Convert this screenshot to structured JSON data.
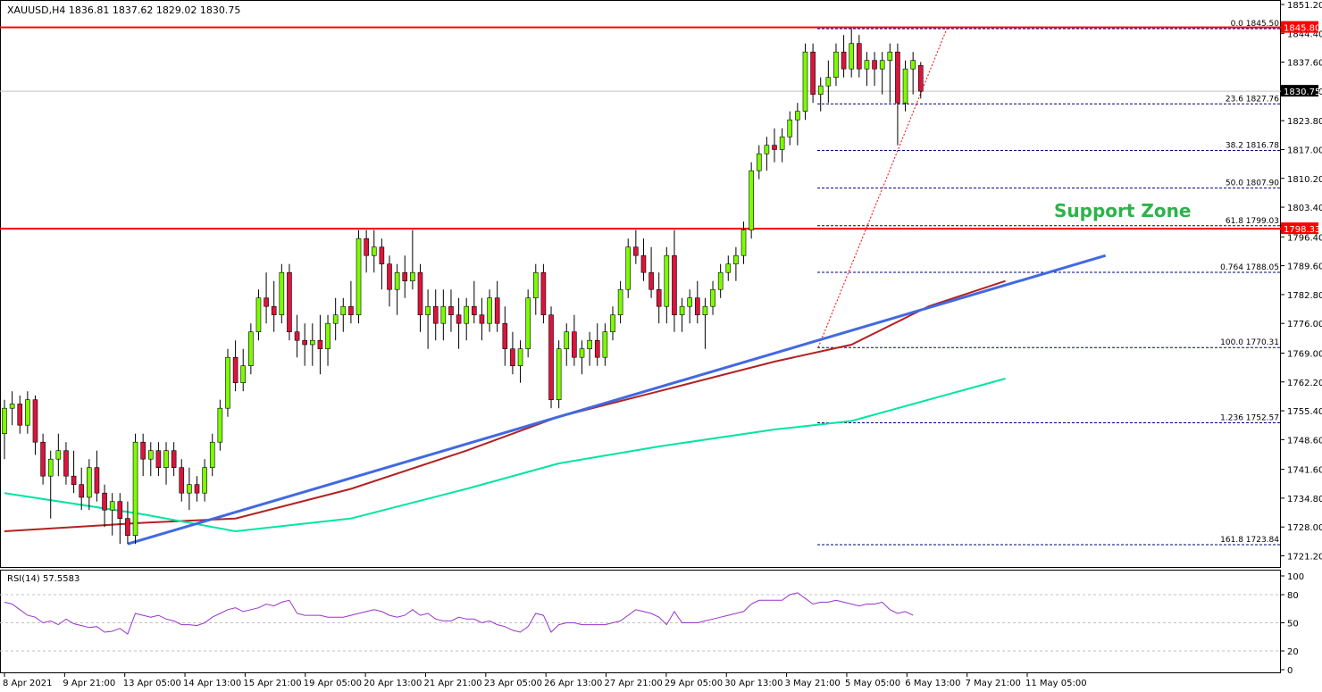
{
  "chart_data": {
    "type": "candlestick",
    "symbol_header": "XAUUSD,H4  1836.81 1837.62 1829.02 1830.75",
    "price_axis_ticks": [
      "1851.20",
      "1844.40",
      "1837.60",
      "1830.80",
      "1823.80",
      "1817.00",
      "1810.20",
      "1803.40",
      "1796.40",
      "1789.60",
      "1782.80",
      "1776.00",
      "1769.00",
      "1762.20",
      "1755.40",
      "1748.60",
      "1741.60",
      "1734.80",
      "1728.00",
      "1721.20"
    ],
    "ylim": [
      1719.2,
      1851.2
    ],
    "time_labels": [
      "8 Apr 2021",
      "9 Apr 21:00",
      "13 Apr 05:00",
      "14 Apr 13:00",
      "15 Apr 21:00",
      "19 Apr 05:00",
      "20 Apr 13:00",
      "21 Apr 21:00",
      "23 Apr 05:00",
      "26 Apr 13:00",
      "27 Apr 21:00",
      "29 Apr 05:00",
      "30 Apr 13:00",
      "3 May 21:00",
      "5 May 05:00",
      "6 May 13:00",
      "7 May 21:00",
      "11 May 05:00"
    ],
    "candles": [
      [
        1750,
        1758,
        1744,
        1756
      ],
      [
        1756,
        1760,
        1752,
        1757
      ],
      [
        1757,
        1759,
        1750,
        1752
      ],
      [
        1752,
        1760,
        1750,
        1758
      ],
      [
        1758,
        1759,
        1745,
        1748
      ],
      [
        1748,
        1750,
        1738,
        1740
      ],
      [
        1740,
        1746,
        1730,
        1744
      ],
      [
        1744,
        1750,
        1740,
        1746
      ],
      [
        1746,
        1748,
        1738,
        1740
      ],
      [
        1740,
        1746,
        1736,
        1738
      ],
      [
        1738,
        1742,
        1732,
        1735
      ],
      [
        1735,
        1744,
        1732,
        1742
      ],
      [
        1742,
        1746,
        1734,
        1736
      ],
      [
        1736,
        1738,
        1728,
        1732
      ],
      [
        1732,
        1736,
        1726,
        1734
      ],
      [
        1734,
        1736,
        1724,
        1730
      ],
      [
        1730,
        1734,
        1724,
        1726
      ],
      [
        1726,
        1750,
        1724,
        1748
      ],
      [
        1748,
        1750,
        1740,
        1744
      ],
      [
        1744,
        1748,
        1740,
        1746
      ],
      [
        1746,
        1748,
        1740,
        1742
      ],
      [
        1742,
        1748,
        1738,
        1746
      ],
      [
        1746,
        1748,
        1740,
        1742
      ],
      [
        1742,
        1744,
        1734,
        1736
      ],
      [
        1736,
        1742,
        1732,
        1738
      ],
      [
        1738,
        1740,
        1734,
        1736
      ],
      [
        1736,
        1744,
        1734,
        1742
      ],
      [
        1742,
        1750,
        1740,
        1748
      ],
      [
        1748,
        1758,
        1746,
        1756
      ],
      [
        1756,
        1770,
        1754,
        1768
      ],
      [
        1768,
        1772,
        1760,
        1762
      ],
      [
        1762,
        1770,
        1760,
        1766
      ],
      [
        1766,
        1776,
        1764,
        1774
      ],
      [
        1774,
        1784,
        1772,
        1782
      ],
      [
        1782,
        1788,
        1776,
        1780
      ],
      [
        1780,
        1786,
        1774,
        1778
      ],
      [
        1778,
        1790,
        1776,
        1788
      ],
      [
        1788,
        1790,
        1772,
        1774
      ],
      [
        1774,
        1778,
        1768,
        1772
      ],
      [
        1772,
        1776,
        1766,
        1771
      ],
      [
        1771,
        1776,
        1766,
        1772
      ],
      [
        1772,
        1778,
        1764,
        1770
      ],
      [
        1770,
        1778,
        1766,
        1776
      ],
      [
        1776,
        1782,
        1772,
        1778
      ],
      [
        1778,
        1782,
        1774,
        1780
      ],
      [
        1780,
        1786,
        1776,
        1778
      ],
      [
        1778,
        1798,
        1776,
        1796
      ],
      [
        1796,
        1798,
        1788,
        1792
      ],
      [
        1792,
        1798,
        1788,
        1794
      ],
      [
        1794,
        1796,
        1784,
        1790
      ],
      [
        1790,
        1792,
        1780,
        1784
      ],
      [
        1784,
        1790,
        1778,
        1788
      ],
      [
        1788,
        1792,
        1782,
        1786
      ],
      [
        1786,
        1798,
        1784,
        1788
      ],
      [
        1788,
        1790,
        1774,
        1778
      ],
      [
        1778,
        1784,
        1770,
        1780
      ],
      [
        1780,
        1784,
        1772,
        1776
      ],
      [
        1776,
        1784,
        1772,
        1780
      ],
      [
        1780,
        1784,
        1774,
        1778
      ],
      [
        1778,
        1782,
        1770,
        1776
      ],
      [
        1776,
        1782,
        1772,
        1780
      ],
      [
        1780,
        1786,
        1776,
        1778
      ],
      [
        1778,
        1782,
        1772,
        1776
      ],
      [
        1776,
        1784,
        1774,
        1782
      ],
      [
        1782,
        1786,
        1774,
        1776
      ],
      [
        1776,
        1780,
        1766,
        1770
      ],
      [
        1770,
        1774,
        1764,
        1766
      ],
      [
        1766,
        1772,
        1762,
        1770
      ],
      [
        1770,
        1784,
        1768,
        1782
      ],
      [
        1782,
        1790,
        1778,
        1788
      ],
      [
        1788,
        1790,
        1776,
        1778
      ],
      [
        1778,
        1780,
        1756,
        1758
      ],
      [
        1758,
        1772,
        1756,
        1770
      ],
      [
        1770,
        1776,
        1766,
        1774
      ],
      [
        1774,
        1778,
        1766,
        1768
      ],
      [
        1768,
        1772,
        1764,
        1770
      ],
      [
        1770,
        1774,
        1766,
        1772
      ],
      [
        1772,
        1776,
        1766,
        1768
      ],
      [
        1768,
        1776,
        1766,
        1774
      ],
      [
        1774,
        1780,
        1772,
        1778
      ],
      [
        1778,
        1786,
        1776,
        1784
      ],
      [
        1784,
        1796,
        1782,
        1794
      ],
      [
        1794,
        1798,
        1790,
        1792
      ],
      [
        1792,
        1796,
        1786,
        1788
      ],
      [
        1788,
        1794,
        1782,
        1784
      ],
      [
        1784,
        1788,
        1776,
        1780
      ],
      [
        1780,
        1794,
        1776,
        1792
      ],
      [
        1792,
        1798,
        1774,
        1778
      ],
      [
        1778,
        1782,
        1774,
        1780
      ],
      [
        1780,
        1784,
        1776,
        1782
      ],
      [
        1782,
        1786,
        1776,
        1778
      ],
      [
        1778,
        1782,
        1770,
        1780
      ],
      [
        1780,
        1786,
        1778,
        1784
      ],
      [
        1784,
        1790,
        1782,
        1788
      ],
      [
        1788,
        1792,
        1786,
        1790
      ],
      [
        1790,
        1794,
        1786,
        1792
      ],
      [
        1792,
        1800,
        1790,
        1798
      ],
      [
        1798,
        1814,
        1796,
        1812
      ],
      [
        1812,
        1818,
        1810,
        1816
      ],
      [
        1816,
        1820,
        1812,
        1818
      ],
      [
        1818,
        1822,
        1814,
        1817
      ],
      [
        1817,
        1822,
        1814,
        1820
      ],
      [
        1820,
        1826,
        1818,
        1824
      ],
      [
        1824,
        1828,
        1818,
        1826
      ],
      [
        1826,
        1842,
        1824,
        1840
      ],
      [
        1840,
        1842,
        1828,
        1830
      ],
      [
        1830,
        1834,
        1826,
        1832
      ],
      [
        1832,
        1838,
        1828,
        1834
      ],
      [
        1834,
        1842,
        1832,
        1840
      ],
      [
        1840,
        1844,
        1834,
        1836
      ],
      [
        1836,
        1845.5,
        1834,
        1842
      ],
      [
        1842,
        1844,
        1834,
        1836
      ],
      [
        1836,
        1840,
        1832,
        1838
      ],
      [
        1838,
        1840,
        1832,
        1836
      ],
      [
        1836,
        1840,
        1830,
        1838
      ],
      [
        1838,
        1842,
        1828,
        1840
      ],
      [
        1840,
        1842,
        1818,
        1828
      ],
      [
        1828,
        1838,
        1826,
        1836
      ],
      [
        1836,
        1840,
        1830,
        1838
      ],
      [
        1836.81,
        1837.62,
        1829.02,
        1830.75
      ]
    ],
    "horizontal_lines": [
      {
        "price": 1845.8,
        "label": "1845.80",
        "color": "#ff0000"
      },
      {
        "price": 1798.33,
        "label": "1798.33",
        "color": "#ff0000"
      },
      {
        "price": 1830.75,
        "label": "1830.75",
        "color": "#c0c0c0"
      }
    ],
    "fibonacci": {
      "color": "#000080",
      "levels": [
        {
          "label": "0.0 1845.50",
          "price": 1845.5
        },
        {
          "label": "23.6 1827.76",
          "price": 1827.76
        },
        {
          "label": "38.2 1816.78",
          "price": 1816.78
        },
        {
          "label": "50.0 1807.90",
          "price": 1807.9
        },
        {
          "label": "61.8 1799.03",
          "price": 1799.03
        },
        {
          "label": "0.764 1788.05",
          "price": 1788.05
        },
        {
          "label": "100.0 1770.31",
          "price": 1770.31
        },
        {
          "label": "1.236 1752.57",
          "price": 1752.57
        },
        {
          "label": "161.8 1723.84",
          "price": 1723.84
        }
      ]
    },
    "moving_averages": [
      {
        "color": "#b22222",
        "points": [
          [
            0,
            1727
          ],
          [
            18,
            1729
          ],
          [
            30,
            1730
          ],
          [
            45,
            1737
          ],
          [
            60,
            1746
          ],
          [
            72,
            1754
          ],
          [
            85,
            1760
          ],
          [
            100,
            1767
          ],
          [
            110,
            1771
          ],
          [
            120,
            1780
          ],
          [
            130,
            1786
          ]
        ]
      },
      {
        "color": "#00e5a0",
        "points": [
          [
            0,
            1736
          ],
          [
            18,
            1731
          ],
          [
            30,
            1727
          ],
          [
            45,
            1730
          ],
          [
            60,
            1737
          ],
          [
            72,
            1743
          ],
          [
            85,
            1747
          ],
          [
            100,
            1751
          ],
          [
            110,
            1753
          ],
          [
            120,
            1758
          ],
          [
            130,
            1763
          ]
        ]
      }
    ],
    "trendline": {
      "color": "#4169e1",
      "points": [
        [
          16,
          1724
        ],
        [
          143,
          1792
        ]
      ]
    },
    "annotation": {
      "text": "Support Zone",
      "color": "#2db34a"
    },
    "rsi": {
      "label": "RSI(14) 57.5583",
      "ticks": [
        "100",
        "80",
        "50",
        "20",
        "0"
      ],
      "color": "#9932cc",
      "values": [
        72,
        70,
        64,
        58,
        56,
        50,
        52,
        48,
        54,
        49,
        47,
        45,
        46,
        40,
        41,
        44,
        38,
        60,
        58,
        56,
        58,
        54,
        52,
        48,
        48,
        47,
        50,
        56,
        60,
        64,
        66,
        62,
        64,
        66,
        70,
        68,
        72,
        74,
        60,
        58,
        58,
        58,
        56,
        56,
        56,
        58,
        60,
        62,
        64,
        62,
        58,
        56,
        58,
        64,
        58,
        60,
        54,
        52,
        52,
        56,
        54,
        54,
        50,
        52,
        48,
        46,
        42,
        40,
        46,
        60,
        58,
        40,
        48,
        50,
        50,
        48,
        48,
        48,
        48,
        50,
        52,
        58,
        64,
        62,
        60,
        56,
        48,
        62,
        50,
        50,
        50,
        52,
        54,
        56,
        58,
        60,
        62,
        70,
        74,
        74,
        74,
        74,
        80,
        82,
        76,
        70,
        72,
        72,
        74,
        72,
        70,
        68,
        70,
        70,
        72,
        64,
        60,
        62,
        58
      ],
      "ylim": [
        0,
        100
      ]
    }
  }
}
